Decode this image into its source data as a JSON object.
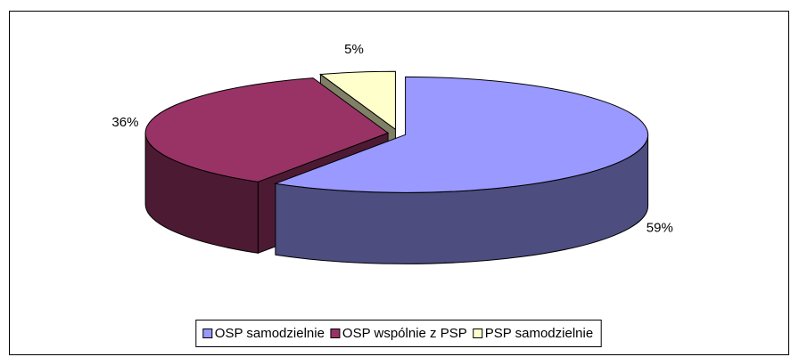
{
  "chart_data": {
    "type": "pie",
    "categories": [
      "OSP samodzielnie",
      "OSP wspólnie z PSP",
      "PSP samodzielnie"
    ],
    "values": [
      59,
      36,
      5
    ],
    "value_labels": [
      "59%",
      "36%",
      "5%"
    ],
    "colors": [
      "#9999ff",
      "#993366",
      "#ffffcc"
    ],
    "legend": "bottom"
  }
}
